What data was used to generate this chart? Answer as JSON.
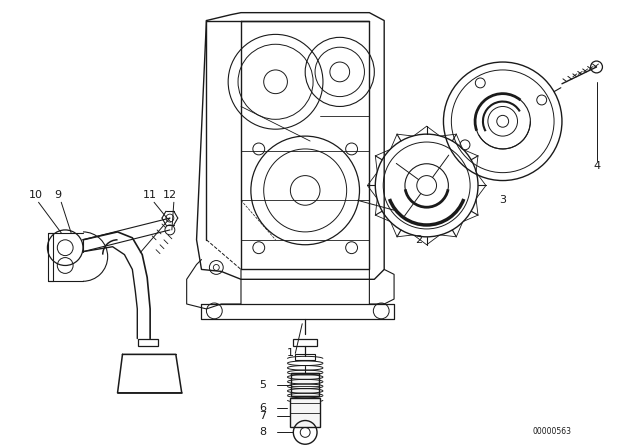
{
  "bg_color": "#ffffff",
  "line_color": "#1a1a1a",
  "fig_width": 6.4,
  "fig_height": 4.48,
  "dpi": 100,
  "diagram_code": "00000563"
}
